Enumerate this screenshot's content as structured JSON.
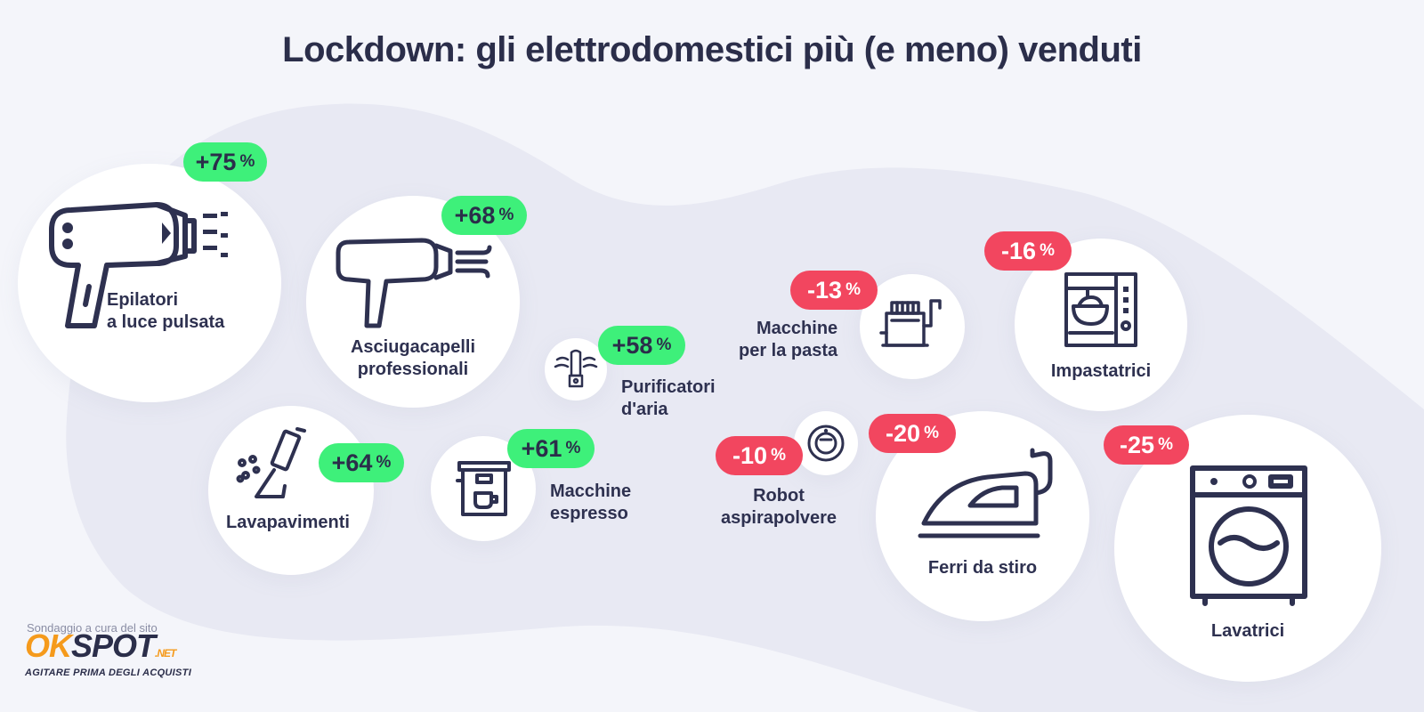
{
  "title": "Lockdown: gli elettrodomestici più (e meno) venduti",
  "chart_data": {
    "type": "bubble",
    "unit": "%",
    "items": [
      {
        "name": "Epilatori a luce pulsata",
        "label_lines": [
          "Epilatori",
          "a luce pulsata"
        ],
        "value": 75,
        "display_sign": "+",
        "icon": "ipl-epilator-icon"
      },
      {
        "name": "Asciugacapelli professionali",
        "label_lines": [
          "Asciugacapelli",
          "professionali"
        ],
        "value": 68,
        "display_sign": "+",
        "icon": "hair-dryer-icon"
      },
      {
        "name": "Lavapavimenti",
        "label_lines": [
          "Lavapavimenti"
        ],
        "value": 64,
        "display_sign": "+",
        "icon": "floor-washer-icon"
      },
      {
        "name": "Macchine espresso",
        "label_lines": [
          "Macchine",
          "espresso"
        ],
        "value": 61,
        "display_sign": "+",
        "icon": "espresso-machine-icon"
      },
      {
        "name": "Purificatori d'aria",
        "label_lines": [
          "Purificatori",
          "d'aria"
        ],
        "value": 58,
        "display_sign": "+",
        "icon": "air-purifier-icon"
      },
      {
        "name": "Macchine per la pasta",
        "label_lines": [
          "Macchine",
          "per la pasta"
        ],
        "value": -13,
        "display_sign": "-",
        "icon": "pasta-machine-icon"
      },
      {
        "name": "Robot aspirapolvere",
        "label_lines": [
          "Robot",
          "aspirapolvere"
        ],
        "value": -10,
        "display_sign": "-",
        "icon": "robot-vacuum-icon"
      },
      {
        "name": "Impastatrici",
        "label_lines": [
          "Impastatrici"
        ],
        "value": -16,
        "display_sign": "-",
        "icon": "stand-mixer-icon"
      },
      {
        "name": "Ferri da stiro",
        "label_lines": [
          "Ferri da stiro"
        ],
        "value": -20,
        "display_sign": "-",
        "icon": "iron-icon"
      },
      {
        "name": "Lavatrici",
        "label_lines": [
          "Lavatrici"
        ],
        "value": -25,
        "display_sign": "-",
        "icon": "washing-machine-icon"
      }
    ],
    "colors": {
      "positive": "#3ef07a",
      "negative": "#f2465f",
      "text": "#2e3150",
      "circle": "#ffffff"
    }
  },
  "footer": {
    "credit": "Sondaggio a cura del sito",
    "logo_ok": "OK",
    "logo_spot": "SPOT",
    "logo_net": ".NET",
    "logo_tagline": "AGITARE PRIMA DEGLI ACQUISTI"
  }
}
